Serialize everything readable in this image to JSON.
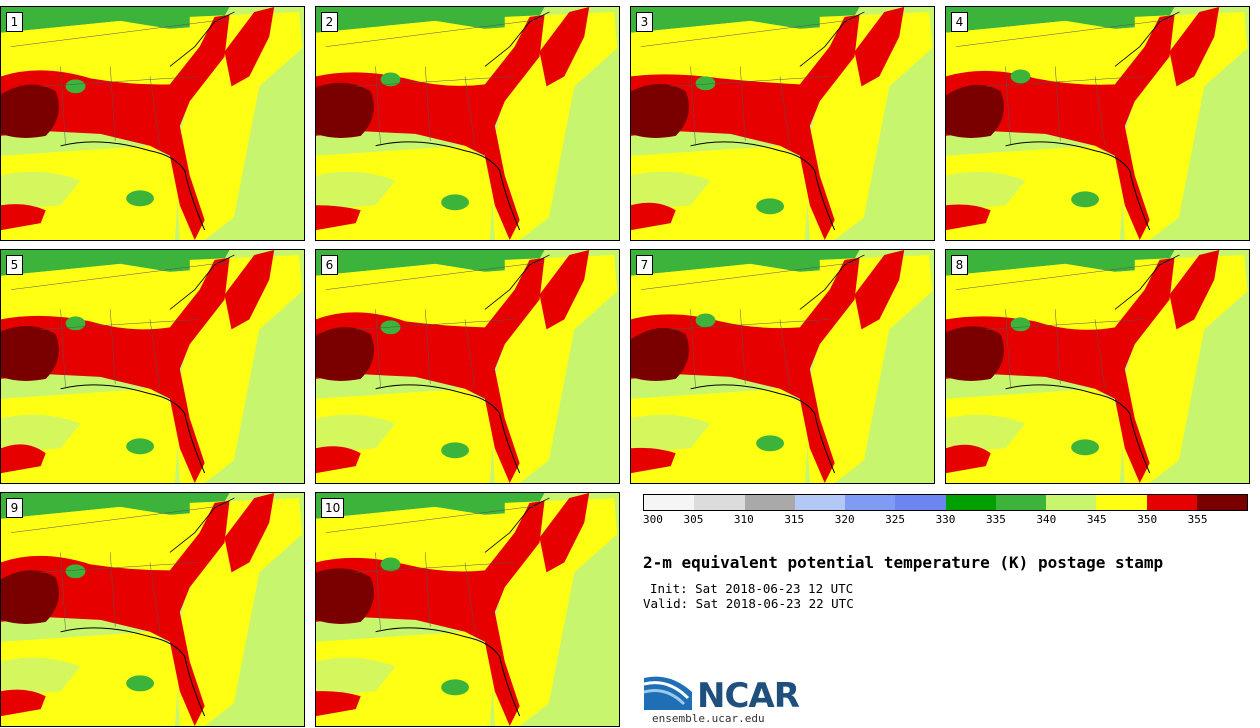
{
  "panels": [
    {
      "label": "1"
    },
    {
      "label": "2"
    },
    {
      "label": "3"
    },
    {
      "label": "4"
    },
    {
      "label": "5"
    },
    {
      "label": "6"
    },
    {
      "label": "7"
    },
    {
      "label": "8"
    },
    {
      "label": "9"
    },
    {
      "label": "10"
    }
  ],
  "colorbar": {
    "colors": [
      "#f5f5f5",
      "#dcdcdc",
      "#a9a9a9",
      "#b4c8f5",
      "#7f9cf5",
      "#6b86f0",
      "#00a000",
      "#3cb43c",
      "#c8f56e",
      "#ffff14",
      "#e60000",
      "#7a0000"
    ],
    "ticks": [
      "300",
      "305",
      "310",
      "315",
      "320",
      "325",
      "330",
      "335",
      "340",
      "345",
      "350",
      "355"
    ]
  },
  "title": "2-m equivalent potential temperature (K) postage stamp",
  "init": "Init: Sat 2018-06-23 12 UTC",
  "valid": "Valid: Sat 2018-06-23 22 UTC",
  "logo": {
    "text": "NCAR",
    "url": "ensemble.ucar.edu"
  },
  "map_colors": {
    "light_green": "#c8f56e",
    "green": "#3cb43c",
    "yellow": "#ffff14",
    "red": "#e60000",
    "dark_red": "#7a0000"
  }
}
